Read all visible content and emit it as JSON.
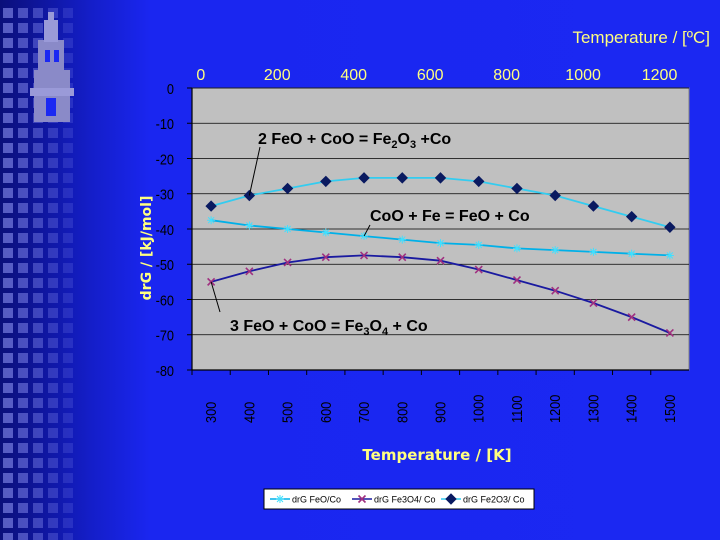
{
  "chart_data": {
    "type": "line",
    "title": "",
    "top_axis_title": "Temperature / [ºC]",
    "top_ticks": [
      "0",
      "200",
      "400",
      "600",
      "800",
      "1000",
      "1200"
    ],
    "xlabel": "Temperature / [K]",
    "ylabel": "drG / [kJ/mol]",
    "categories": [
      "300",
      "400",
      "500",
      "600",
      "700",
      "800",
      "900",
      "1000",
      "1100",
      "1200",
      "1300",
      "1400",
      "1500"
    ],
    "y_ticks": [
      "0",
      "-10",
      "-20",
      "-30",
      "-40",
      "-50",
      "-60",
      "-70",
      "-80"
    ],
    "ylim": [
      -80,
      0
    ],
    "grid": "horizontal",
    "legend_position": "bottom",
    "series": [
      {
        "name": "drG FeO/Co",
        "marker": "star",
        "color": "#00b0e8",
        "values": [
          -37.5,
          -39,
          -40,
          -41,
          -42,
          -43,
          -44,
          -44.5,
          -45.5,
          -46,
          -46.5,
          -47,
          -47.5
        ]
      },
      {
        "name": "drG Fe3O4/ Co",
        "marker": "x",
        "color": "#1a1aa0",
        "values": [
          -55,
          -52,
          -49.5,
          -48,
          -47.5,
          -48,
          -49,
          -51.5,
          -54.5,
          -57.5,
          -61,
          -65,
          -69.5
        ]
      },
      {
        "name": "drG Fe2O3/ Co",
        "marker": "diamond",
        "color": "#33ccf0",
        "values": [
          -33.5,
          -30.5,
          -28.5,
          -26.5,
          -25.5,
          -25.5,
          -25.5,
          -26.5,
          -28.5,
          -30.5,
          -33.5,
          -36.5,
          -39.5
        ]
      }
    ],
    "annotations": [
      {
        "text_parts": [
          [
            "2 FeO + CoO = Fe",
            "n"
          ],
          [
            "2",
            "sub"
          ],
          [
            "O",
            "n"
          ],
          [
            "3",
            "sub"
          ],
          [
            " +Co",
            "n"
          ]
        ],
        "target_series": 2,
        "target_index": 1
      },
      {
        "text_parts": [
          [
            "CoO + Fe = FeO + Co",
            "n"
          ]
        ],
        "target_series": 0,
        "target_index": 4
      },
      {
        "text_parts": [
          [
            "3 FeO + CoO = Fe",
            "n"
          ],
          [
            "3",
            "sub"
          ],
          [
            "O",
            "n"
          ],
          [
            "4",
            "sub"
          ],
          [
            " + Co",
            "n"
          ]
        ],
        "target_series": 1,
        "target_index": 0
      }
    ]
  },
  "colors": {
    "plot_bg": "#c0c0c0",
    "text_yellow": "#ffff80",
    "annotation_bg": "#c0c0c0"
  }
}
